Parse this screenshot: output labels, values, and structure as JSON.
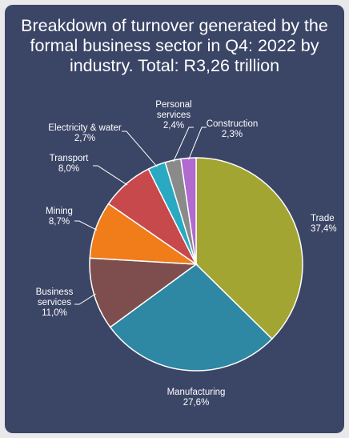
{
  "title_lines": [
    "Breakdown of turnover generated by the",
    "formal business sector in Q4: 2022 by",
    "industry. Total: R3,26 trillion"
  ],
  "chart_data": {
    "type": "pie",
    "title": "Breakdown of turnover generated by the formal business sector in Q4: 2022 by industry. Total: R3,26 trillion",
    "unit": "%",
    "slices": [
      {
        "name": "Trade",
        "value": 37.4,
        "value_label": "37,4%",
        "color": "#a3a533"
      },
      {
        "name": "Manufacturing",
        "value": 27.6,
        "value_label": "27,6%",
        "color": "#2e87a3"
      },
      {
        "name": "Business services",
        "value": 11.0,
        "value_label": "11,0%",
        "color": "#7d4e4d"
      },
      {
        "name": "Mining",
        "value": 8.7,
        "value_label": "8,7%",
        "color": "#f07c1a"
      },
      {
        "name": "Transport",
        "value": 8.0,
        "value_label": "8,0%",
        "color": "#c8494b"
      },
      {
        "name": "Electricity & water",
        "value": 2.7,
        "value_label": "2,7%",
        "color": "#29a9c2"
      },
      {
        "name": "Personal services",
        "value": 2.4,
        "value_label": "2,4%",
        "color": "#8a8a8a"
      },
      {
        "name": "Construction",
        "value": 2.3,
        "value_label": "2,3%",
        "color": "#b06ad0"
      }
    ]
  }
}
